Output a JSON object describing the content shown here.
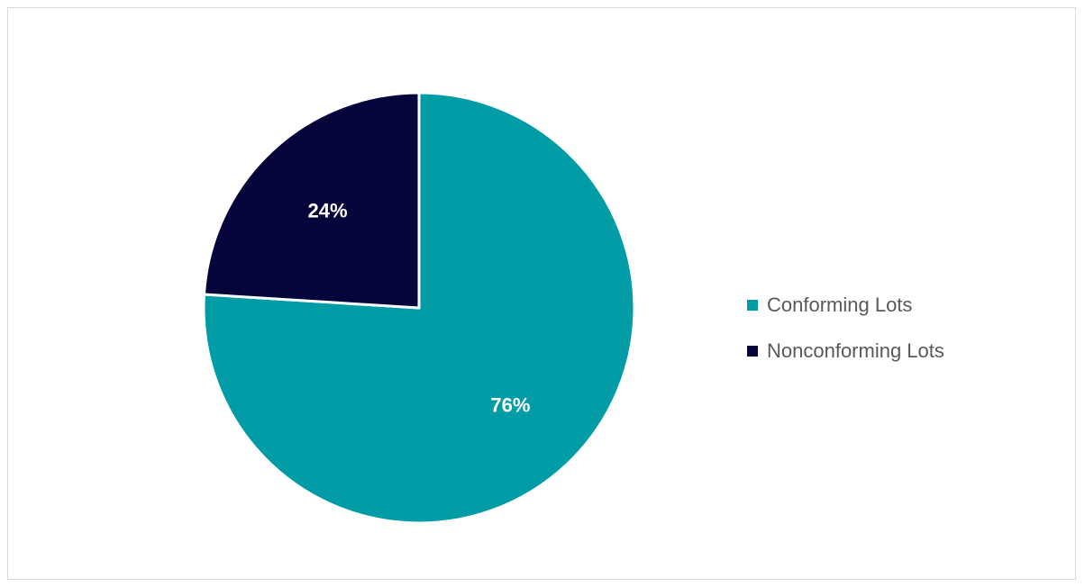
{
  "chart_data": {
    "type": "pie",
    "categories": [
      "Conforming Lots",
      "Nonconforming Lots"
    ],
    "values": [
      76,
      24
    ],
    "data_labels": [
      "76%",
      "24%"
    ],
    "colors": [
      "#019ca6",
      "#05043b"
    ],
    "start_angle_deg": 0,
    "direction": "clockwise",
    "legend_position": "right",
    "slice_border_color": "#ffffff"
  },
  "legend": {
    "items": [
      {
        "label": "Conforming Lots",
        "color": "#019ca6"
      },
      {
        "label": "Nonconforming Lots",
        "color": "#05043b"
      }
    ]
  }
}
